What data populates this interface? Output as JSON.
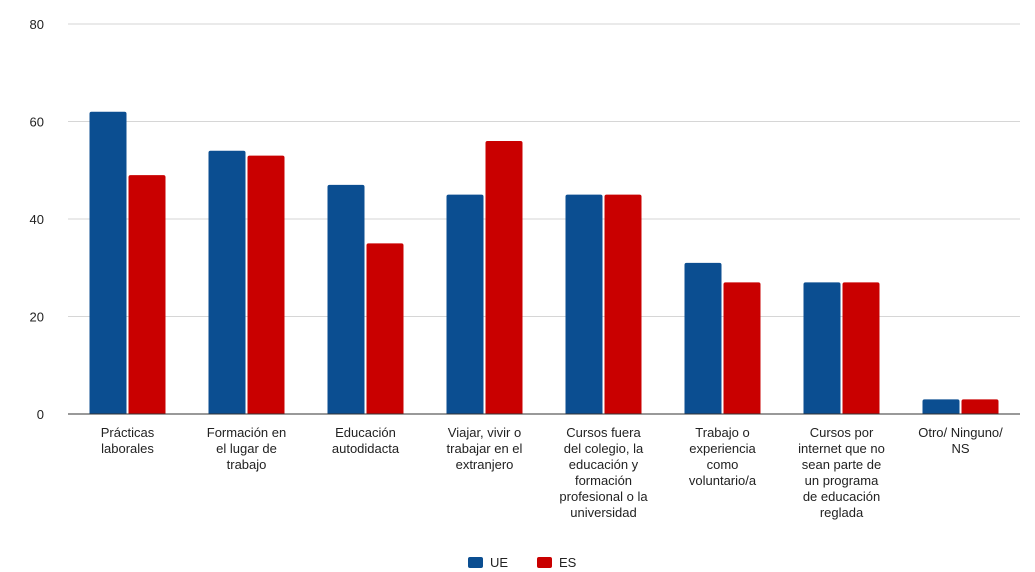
{
  "chart_data": {
    "type": "bar",
    "categories": [
      [
        "Prácticas",
        "laborales"
      ],
      [
        "Formación en",
        "el lugar de",
        "trabajo"
      ],
      [
        "Educación",
        "autodidacta"
      ],
      [
        "Viajar, vivir o",
        "trabajar en el",
        "extranjero"
      ],
      [
        "Cursos fuera",
        "del colegio, la",
        "educación y",
        "formación",
        "profesional o la",
        "universidad"
      ],
      [
        "Trabajo o",
        "experiencia",
        "como",
        "voluntario/a"
      ],
      [
        "Cursos por",
        "internet que no",
        "sean parte de",
        "un programa",
        "de educación",
        "reglada"
      ],
      [
        "Otro/ Ninguno/",
        "NS"
      ]
    ],
    "series": [
      {
        "name": "UE",
        "color": "#0b4e91",
        "values": [
          62,
          54,
          47,
          45,
          45,
          31,
          27,
          3
        ]
      },
      {
        "name": "ES",
        "color": "#c90000",
        "values": [
          49,
          53,
          35,
          56,
          45,
          27,
          27,
          3
        ]
      }
    ],
    "ylim": [
      0,
      80
    ],
    "yticks": [
      0,
      20,
      40,
      60,
      80
    ],
    "grid": true,
    "legend_position": "bottom"
  }
}
